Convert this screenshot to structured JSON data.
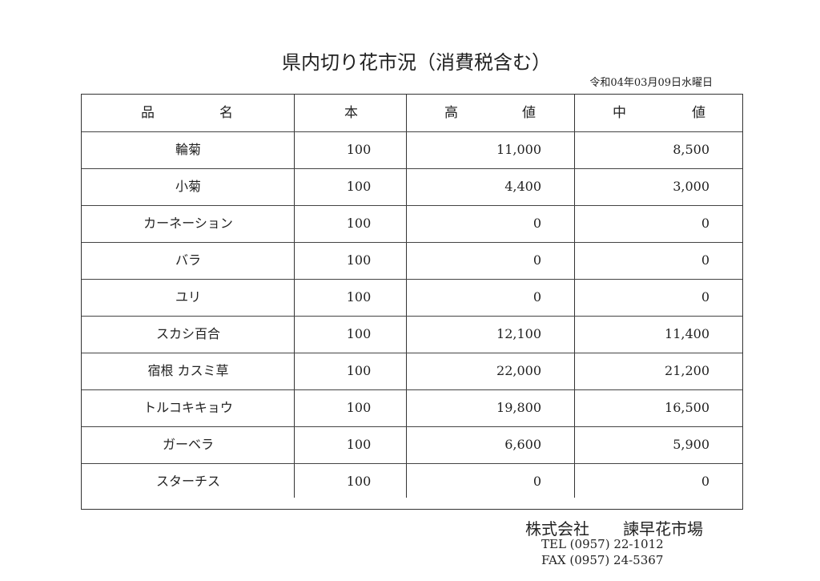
{
  "title": "県内切り花市況（消費税含む）",
  "date": "令和04年03月09日水曜日",
  "headers": {
    "name_1": "品",
    "name_2": "名",
    "qty": "本",
    "high_1": "高",
    "high_2": "値",
    "mid_1": "中",
    "mid_2": "値"
  },
  "rows": [
    {
      "name": "輪菊",
      "qty": "100",
      "high": "11,000",
      "mid": "8,500"
    },
    {
      "name": "小菊",
      "qty": "100",
      "high": "4,400",
      "mid": "3,000"
    },
    {
      "name": "カーネーション",
      "qty": "100",
      "high": "0",
      "mid": "0"
    },
    {
      "name": "バラ",
      "qty": "100",
      "high": "0",
      "mid": "0"
    },
    {
      "name": "ユリ",
      "qty": "100",
      "high": "0",
      "mid": "0"
    },
    {
      "name": "スカシ百合",
      "qty": "100",
      "high": "12,100",
      "mid": "11,400"
    },
    {
      "name": "宿根 カスミ草",
      "qty": "100",
      "high": "22,000",
      "mid": "21,200"
    },
    {
      "name": "トルコキキョウ",
      "qty": "100",
      "high": "19,800",
      "mid": "16,500"
    },
    {
      "name": "ガーベラ",
      "qty": "100",
      "high": "6,600",
      "mid": "5,900"
    },
    {
      "name": "スターチス",
      "qty": "100",
      "high": "0",
      "mid": "0"
    }
  ],
  "footer": {
    "company_type": "株式会社",
    "company_name": "諫早花市場",
    "tel": "TEL (0957) 22-1012",
    "fax": "FAX (0957) 24-5367"
  }
}
